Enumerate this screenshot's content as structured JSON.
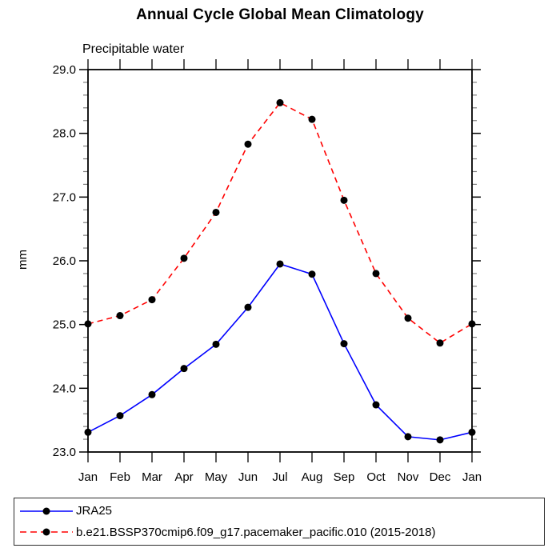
{
  "chart_data": {
    "type": "line",
    "title": "Annual Cycle Global Mean Climatology",
    "subtitle": "Precipitable water",
    "ylabel": "mm",
    "xlabel": "",
    "categories": [
      "Jan",
      "Feb",
      "Mar",
      "Apr",
      "May",
      "Jun",
      "Jul",
      "Aug",
      "Sep",
      "Oct",
      "Nov",
      "Dec",
      "Jan"
    ],
    "ylim": [
      23.0,
      29.0
    ],
    "y_major_step": 1.0,
    "y_minor_step": 0.2,
    "y_tick_labels": [
      "23.0",
      "24.0",
      "25.0",
      "26.0",
      "27.0",
      "28.0",
      "29.0"
    ],
    "grid": false,
    "legend_position": "bottom-left-box",
    "series": [
      {
        "name": "JRA25",
        "color": "#0000ff",
        "line_style": "solid",
        "marker": "filled-circle",
        "marker_color": "#000000",
        "values": [
          23.31,
          23.57,
          23.9,
          24.31,
          24.69,
          25.27,
          25.95,
          25.79,
          24.7,
          23.74,
          23.24,
          23.19,
          23.31
        ]
      },
      {
        "name": "b.e21.BSSP370cmip6.f09_g17.pacemaker_pacific.010 (2015-2018)",
        "color": "#ff0000",
        "line_style": "dashed",
        "marker": "filled-circle",
        "marker_color": "#000000",
        "values": [
          25.01,
          25.14,
          25.39,
          26.04,
          26.76,
          27.83,
          28.48,
          28.22,
          26.95,
          25.8,
          25.1,
          24.71,
          25.01
        ]
      }
    ],
    "axis_color": "#000000",
    "minor_tick_color": "#7f7f7f"
  }
}
